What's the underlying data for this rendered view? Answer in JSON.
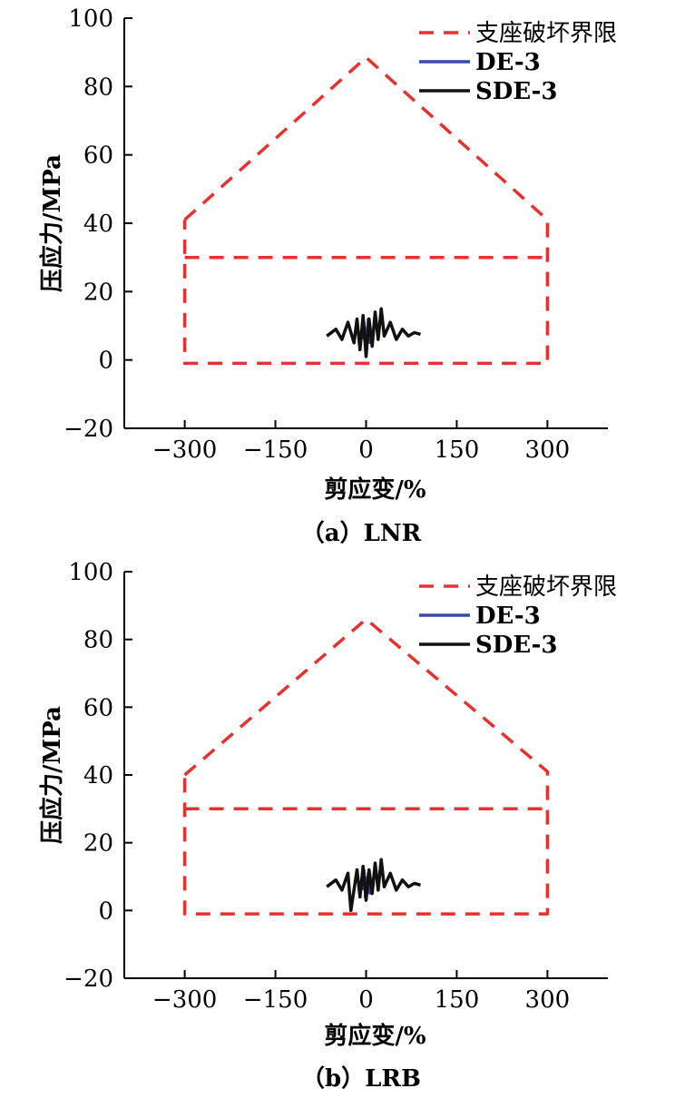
{
  "colors": {
    "limit": "#e8312f",
    "de3": "#3a47a8",
    "sde3": "#111111",
    "axis": "#000000"
  },
  "chart_data": [
    {
      "type": "line",
      "panel": "a",
      "caption": "（a）LNR",
      "xlabel": "剪应变/%",
      "ylabel": "压应力/MPa",
      "xlim": [
        -400,
        400
      ],
      "ylim": [
        -20,
        100
      ],
      "xticks": [
        -300,
        -150,
        0,
        150,
        300
      ],
      "xtick_labels": [
        "−300",
        "−150",
        "0",
        "150",
        "300"
      ],
      "yticks": [
        -20,
        0,
        20,
        40,
        60,
        80,
        100
      ],
      "ytick_labels": [
        "−20",
        "0",
        "20",
        "40",
        "60",
        "80",
        "100"
      ],
      "legend_position": "top-right",
      "series": [
        {
          "name": "支座破坏界限",
          "style": "dashed",
          "color_key": "limit",
          "x": [
            -300,
            0,
            300,
            300,
            -300,
            -300
          ],
          "y": [
            41,
            88.5,
            41,
            -1,
            -1,
            41
          ]
        },
        {
          "name": "支座破坏界限 (inner)",
          "legend": false,
          "style": "dashed",
          "color_key": "limit",
          "x": [
            -300,
            300
          ],
          "y": [
            30,
            30
          ]
        },
        {
          "name": "DE-3",
          "style": "solid",
          "color_key": "de3",
          "x": [
            -6,
            -3,
            0,
            3,
            6,
            2,
            -2,
            4,
            -5,
            1
          ],
          "y": [
            6,
            11,
            2,
            12,
            5,
            10,
            4,
            9,
            7,
            8
          ]
        },
        {
          "name": "SDE-3",
          "style": "solid",
          "color_key": "sde3",
          "x": [
            -65,
            -50,
            -40,
            -30,
            -20,
            -15,
            -10,
            -5,
            0,
            5,
            10,
            15,
            20,
            25,
            30,
            40,
            50,
            60,
            70,
            80,
            90
          ],
          "y": [
            7,
            9,
            6,
            11,
            5,
            12,
            3,
            13,
            1,
            12,
            4,
            14,
            6,
            15,
            7,
            11,
            6,
            9,
            7,
            8,
            7.5
          ]
        }
      ]
    },
    {
      "type": "line",
      "panel": "b",
      "caption": "（b）LRB",
      "xlabel": "剪应变/%",
      "ylabel": "压应力/MPa",
      "xlim": [
        -400,
        400
      ],
      "ylim": [
        -20,
        100
      ],
      "xticks": [
        -300,
        -150,
        0,
        150,
        300
      ],
      "xtick_labels": [
        "−300",
        "−150",
        "0",
        "150",
        "300"
      ],
      "yticks": [
        -20,
        0,
        20,
        40,
        60,
        80,
        100
      ],
      "ytick_labels": [
        "−20",
        "0",
        "20",
        "40",
        "60",
        "80",
        "100"
      ],
      "legend_position": "top-right",
      "series": [
        {
          "name": "支座破坏界限",
          "style": "dashed",
          "color_key": "limit",
          "x": [
            -300,
            0,
            300,
            300,
            -300,
            -300
          ],
          "y": [
            40,
            86,
            41,
            -1,
            -1,
            40
          ]
        },
        {
          "name": "支座破坏界限 (inner)",
          "legend": false,
          "style": "dashed",
          "color_key": "limit",
          "x": [
            -300,
            300
          ],
          "y": [
            30,
            30
          ]
        },
        {
          "name": "DE-3",
          "style": "solid",
          "color_key": "de3",
          "x": [
            -6,
            -3,
            0,
            3,
            6,
            2,
            -2,
            4,
            -5,
            1
          ],
          "y": [
            6,
            12,
            3,
            11,
            5,
            10,
            4,
            9,
            7,
            8
          ]
        },
        {
          "name": "SDE-3",
          "style": "solid",
          "color_key": "sde3",
          "x": [
            -65,
            -50,
            -40,
            -30,
            -25,
            -15,
            -10,
            -5,
            0,
            5,
            10,
            15,
            20,
            25,
            30,
            40,
            50,
            60,
            70,
            80,
            90
          ],
          "y": [
            7,
            9,
            6,
            11,
            0,
            12,
            4,
            13,
            3,
            12,
            5,
            14,
            6,
            15,
            7,
            11,
            6,
            9,
            7,
            8,
            7.5
          ]
        }
      ]
    }
  ]
}
